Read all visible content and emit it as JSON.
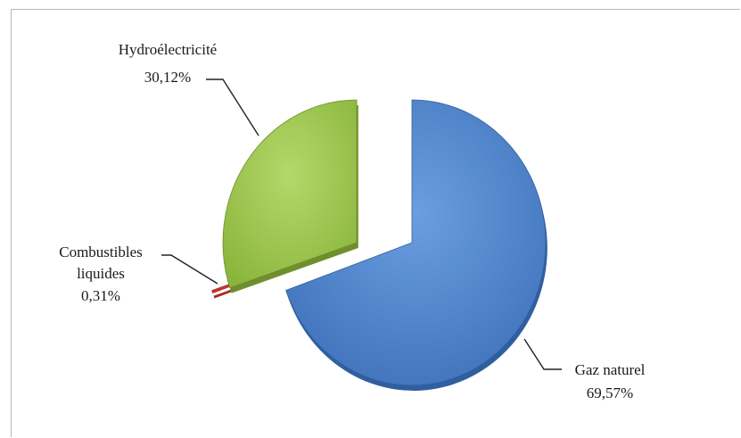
{
  "chart_data": {
    "type": "pie",
    "slices": [
      {
        "name": "Gaz naturel",
        "value": 69.57,
        "label_value": "69,57%",
        "color": "#4a7fc8",
        "dark": "#2f5f9e"
      },
      {
        "name": "Combustibles liquides",
        "name_lines": [
          "Combustibles",
          "liquides"
        ],
        "value": 0.31,
        "label_value": "0,31%",
        "color": "#d9403a",
        "dark": "#a82a25"
      },
      {
        "name": "Hydroélectricité",
        "value": 30.12,
        "label_value": "30,12%",
        "color": "#9dc44a",
        "dark": "#6f8f2c"
      }
    ]
  }
}
